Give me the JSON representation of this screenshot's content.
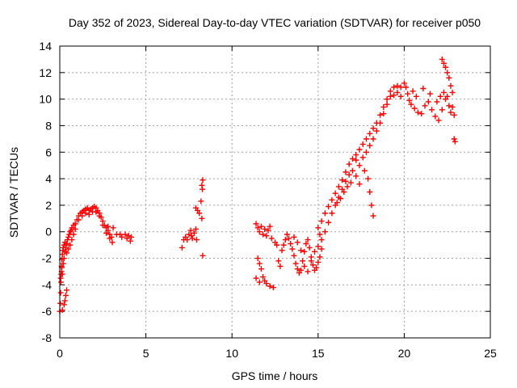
{
  "chart_data": {
    "type": "scatter",
    "title": "Day 352 of 2023, Sidereal Day-to-day VTEC variation (SDTVAR) for receiver p050",
    "xlabel": "GPS time / hours",
    "ylabel": "SDTVAR / TECUs",
    "xlim": [
      0,
      25
    ],
    "ylim": [
      -8,
      14
    ],
    "xticks": [
      0,
      5,
      10,
      15,
      20,
      25
    ],
    "yticks": [
      -8,
      -6,
      -4,
      -2,
      0,
      2,
      4,
      6,
      8,
      10,
      12,
      14
    ],
    "grid": true,
    "marker": "+",
    "color": "#ff0000",
    "series": [
      {
        "name": "p050",
        "points": [
          [
            0.0,
            -6.0
          ],
          [
            0.03,
            -5.4
          ],
          [
            0.05,
            -4.6
          ],
          [
            0.07,
            -3.8
          ],
          [
            0.08,
            -3.2
          ],
          [
            0.1,
            -2.6
          ],
          [
            0.12,
            -2.1
          ],
          [
            0.15,
            -1.7
          ],
          [
            0.18,
            -1.4
          ],
          [
            0.2,
            -1.2
          ],
          [
            0.25,
            -1.0
          ],
          [
            0.3,
            -0.8
          ],
          [
            0.05,
            -3.5
          ],
          [
            0.1,
            -3.0
          ],
          [
            0.12,
            -2.7
          ],
          [
            0.15,
            -3.2
          ],
          [
            0.2,
            -2.4
          ],
          [
            0.25,
            -2.0
          ],
          [
            0.3,
            -1.5
          ],
          [
            0.35,
            -1.2
          ],
          [
            0.4,
            -0.9
          ],
          [
            0.45,
            -0.6
          ],
          [
            0.5,
            -0.4
          ],
          [
            0.55,
            -0.2
          ],
          [
            0.6,
            0.0
          ],
          [
            0.65,
            0.1
          ],
          [
            0.7,
            0.3
          ],
          [
            0.8,
            0.5
          ],
          [
            0.15,
            -5.9
          ],
          [
            0.25,
            -5.5
          ],
          [
            0.3,
            -5.2
          ],
          [
            0.35,
            -4.8
          ],
          [
            0.4,
            -4.4
          ],
          [
            0.4,
            -1.6
          ],
          [
            0.5,
            -1.3
          ],
          [
            0.6,
            -1.0
          ],
          [
            0.7,
            -0.6
          ],
          [
            0.8,
            -0.2
          ],
          [
            0.9,
            0.2
          ],
          [
            0.9,
            0.6
          ],
          [
            1.0,
            0.9
          ],
          [
            1.1,
            1.2
          ],
          [
            1.2,
            1.4
          ],
          [
            1.3,
            1.5
          ],
          [
            1.4,
            1.6
          ],
          [
            1.5,
            1.7
          ],
          [
            1.6,
            1.8
          ],
          [
            1.7,
            1.6
          ],
          [
            1.8,
            1.7
          ],
          [
            1.9,
            1.8
          ],
          [
            2.0,
            1.9
          ],
          [
            2.1,
            1.8
          ],
          [
            2.2,
            1.6
          ],
          [
            2.3,
            1.4
          ],
          [
            2.4,
            1.1
          ],
          [
            2.5,
            0.8
          ],
          [
            2.6,
            0.5
          ],
          [
            2.7,
            0.3
          ],
          [
            2.8,
            0.1
          ],
          [
            2.9,
            -0.2
          ],
          [
            3.0,
            -0.4
          ],
          [
            1.1,
            0.9
          ],
          [
            1.3,
            1.2
          ],
          [
            1.5,
            1.4
          ],
          [
            1.7,
            1.3
          ],
          [
            1.9,
            1.5
          ],
          [
            2.1,
            1.5
          ],
          [
            2.3,
            1.2
          ],
          [
            2.5,
            0.5
          ],
          [
            2.7,
            -0.1
          ],
          [
            2.9,
            -0.5
          ],
          [
            3.05,
            -0.8
          ],
          [
            2.8,
            0.4
          ],
          [
            3.1,
            0.3
          ],
          [
            3.3,
            -0.2
          ],
          [
            3.5,
            -0.2
          ],
          [
            3.6,
            -0.4
          ],
          [
            3.8,
            -0.2
          ],
          [
            3.9,
            -0.5
          ],
          [
            4.0,
            -0.3
          ],
          [
            4.1,
            -0.7
          ],
          [
            4.15,
            -0.4
          ],
          [
            7.1,
            -1.2
          ],
          [
            7.2,
            -0.6
          ],
          [
            7.3,
            -0.4
          ],
          [
            7.4,
            -0.6
          ],
          [
            7.5,
            -0.2
          ],
          [
            7.6,
            0.1
          ],
          [
            7.65,
            -0.3
          ],
          [
            7.7,
            -0.5
          ],
          [
            7.8,
            -0.1
          ],
          [
            7.9,
            0.2
          ],
          [
            7.95,
            -0.6
          ],
          [
            7.9,
            1.8
          ],
          [
            8.0,
            1.6
          ],
          [
            8.1,
            1.4
          ],
          [
            8.2,
            2.3
          ],
          [
            8.25,
            1.0
          ],
          [
            8.25,
            3.5
          ],
          [
            8.28,
            3.2
          ],
          [
            8.3,
            3.9
          ],
          [
            8.3,
            -1.8
          ],
          [
            11.4,
            0.6
          ],
          [
            11.5,
            0.3
          ],
          [
            11.6,
            0.0
          ],
          [
            11.7,
            0.4
          ],
          [
            11.8,
            -0.2
          ],
          [
            11.9,
            0.2
          ],
          [
            12.0,
            -0.3
          ],
          [
            12.1,
            0.1
          ],
          [
            12.2,
            0.4
          ],
          [
            12.3,
            -0.5
          ],
          [
            11.5,
            -2.0
          ],
          [
            11.6,
            -2.4
          ],
          [
            11.7,
            -2.8
          ],
          [
            11.8,
            -3.4
          ],
          [
            11.9,
            -3.7
          ],
          [
            12.0,
            -3.9
          ],
          [
            12.2,
            -4.1
          ],
          [
            12.4,
            -4.2
          ],
          [
            11.4,
            -3.5
          ],
          [
            11.6,
            -3.8
          ],
          [
            12.5,
            -0.8
          ],
          [
            12.6,
            -1.0
          ],
          [
            12.7,
            -2.2
          ],
          [
            12.8,
            -2.6
          ],
          [
            12.9,
            -1.4
          ],
          [
            13.0,
            -1.0
          ],
          [
            13.1,
            -0.6
          ],
          [
            13.2,
            -0.2
          ],
          [
            13.3,
            -0.5
          ],
          [
            13.4,
            -0.9
          ],
          [
            13.5,
            -1.3
          ],
          [
            13.6,
            -1.8
          ],
          [
            13.7,
            -2.4
          ],
          [
            13.8,
            -2.8
          ],
          [
            13.9,
            -3.1
          ],
          [
            14.0,
            -2.9
          ],
          [
            14.1,
            -2.2
          ],
          [
            14.2,
            -1.5
          ],
          [
            14.3,
            -0.9
          ],
          [
            14.4,
            -0.6
          ],
          [
            14.5,
            -1.2
          ],
          [
            14.6,
            -1.9
          ],
          [
            14.7,
            -2.5
          ],
          [
            14.8,
            -2.9
          ],
          [
            14.9,
            -2.7
          ],
          [
            15.0,
            -2.3
          ],
          [
            15.1,
            -1.9
          ],
          [
            15.2,
            -1.3
          ],
          [
            13.6,
            -0.4
          ],
          [
            13.8,
            -0.8
          ],
          [
            14.0,
            -1.4
          ],
          [
            14.2,
            -2.6
          ],
          [
            14.4,
            -3.0
          ],
          [
            14.6,
            -2.2
          ],
          [
            14.8,
            -1.5
          ],
          [
            15.0,
            -1.1
          ],
          [
            15.1,
            -0.2
          ],
          [
            15.0,
            0.3
          ],
          [
            15.2,
            0.8
          ],
          [
            15.4,
            1.4
          ],
          [
            15.6,
            1.9
          ],
          [
            15.8,
            2.4
          ],
          [
            16.0,
            2.9
          ],
          [
            16.2,
            3.4
          ],
          [
            16.4,
            3.9
          ],
          [
            16.6,
            4.5
          ],
          [
            16.8,
            5.1
          ],
          [
            17.0,
            5.5
          ],
          [
            17.2,
            5.4
          ],
          [
            17.4,
            5.0
          ],
          [
            15.2,
            -0.6
          ],
          [
            15.4,
            0.0
          ],
          [
            15.6,
            0.7
          ],
          [
            15.8,
            1.4
          ],
          [
            16.0,
            2.0
          ],
          [
            16.2,
            2.6
          ],
          [
            16.4,
            3.2
          ],
          [
            16.6,
            3.8
          ],
          [
            16.8,
            4.3
          ],
          [
            17.0,
            4.6
          ],
          [
            17.2,
            4.2
          ],
          [
            17.4,
            3.6
          ],
          [
            16.1,
            2.2
          ],
          [
            16.3,
            2.5
          ],
          [
            16.5,
            3.0
          ],
          [
            16.7,
            3.4
          ],
          [
            16.9,
            3.7
          ],
          [
            17.2,
            5.8
          ],
          [
            17.4,
            6.2
          ],
          [
            17.6,
            6.6
          ],
          [
            17.8,
            7.0
          ],
          [
            18.0,
            7.4
          ],
          [
            18.2,
            7.8
          ],
          [
            18.4,
            8.2
          ],
          [
            18.6,
            8.8
          ],
          [
            18.8,
            9.4
          ],
          [
            19.0,
            10.0
          ],
          [
            19.2,
            10.6
          ],
          [
            19.4,
            10.9
          ],
          [
            19.6,
            11.0
          ],
          [
            19.8,
            10.9
          ],
          [
            17.6,
            5.6
          ],
          [
            17.8,
            6.0
          ],
          [
            18.0,
            6.5
          ],
          [
            18.2,
            7.0
          ],
          [
            18.4,
            7.6
          ],
          [
            18.6,
            8.2
          ],
          [
            18.8,
            8.9
          ],
          [
            19.0,
            9.6
          ],
          [
            19.2,
            10.2
          ],
          [
            19.4,
            10.3
          ],
          [
            19.6,
            10.5
          ],
          [
            19.8,
            10.2
          ],
          [
            17.9,
            4.0
          ],
          [
            18.0,
            3.0
          ],
          [
            18.1,
            2.0
          ],
          [
            18.2,
            1.2
          ],
          [
            17.7,
            4.6
          ],
          [
            20.0,
            11.2
          ],
          [
            20.1,
            10.9
          ],
          [
            20.2,
            10.4
          ],
          [
            20.3,
            9.9
          ],
          [
            20.4,
            9.6
          ],
          [
            20.6,
            9.3
          ],
          [
            20.8,
            9.0
          ],
          [
            21.0,
            8.9
          ],
          [
            21.2,
            9.5
          ],
          [
            21.4,
            9.8
          ],
          [
            21.6,
            9.2
          ],
          [
            21.8,
            8.7
          ],
          [
            22.0,
            8.4
          ],
          [
            22.2,
            9.2
          ],
          [
            22.4,
            10.0
          ],
          [
            22.5,
            10.2
          ],
          [
            22.6,
            9.5
          ],
          [
            22.7,
            9.0
          ],
          [
            22.8,
            9.4
          ],
          [
            20.5,
            10.6
          ],
          [
            20.7,
            10.2
          ],
          [
            21.1,
            10.8
          ],
          [
            21.5,
            10.4
          ],
          [
            21.9,
            9.8
          ],
          [
            22.1,
            10.2
          ],
          [
            22.3,
            10.5
          ],
          [
            22.2,
            13.0
          ],
          [
            22.3,
            12.7
          ],
          [
            22.4,
            12.4
          ],
          [
            22.5,
            12.0
          ],
          [
            22.6,
            11.6
          ],
          [
            22.7,
            11.0
          ],
          [
            22.8,
            10.5
          ],
          [
            22.9,
            8.8
          ],
          [
            22.9,
            7.0
          ],
          [
            22.95,
            6.8
          ]
        ]
      }
    ]
  }
}
